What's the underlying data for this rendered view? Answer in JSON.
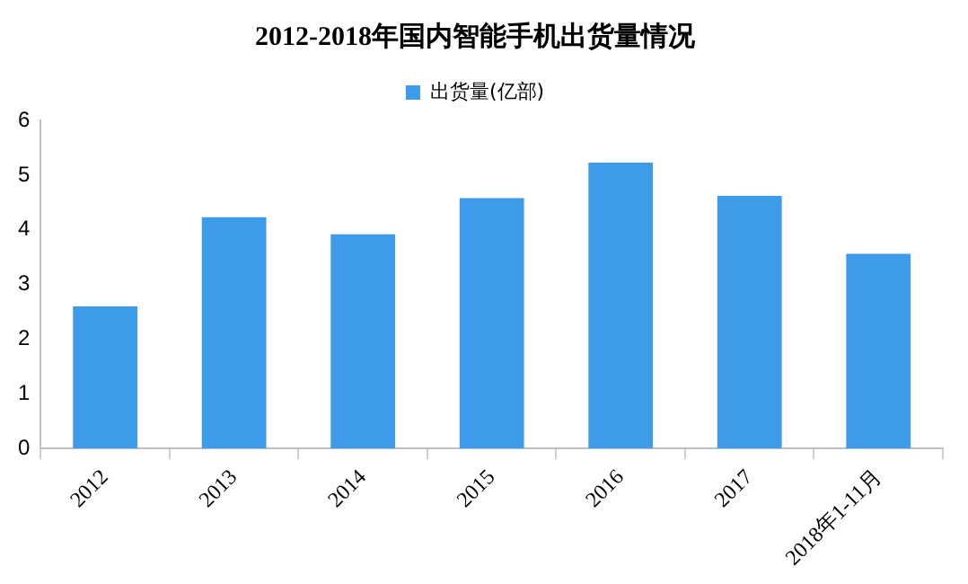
{
  "chart_data": {
    "type": "bar",
    "title": "2012-2018年国内智能手机出货量情况",
    "categories": [
      "2012",
      "2013",
      "2014",
      "2015",
      "2016",
      "2017",
      "2018年1-11月"
    ],
    "series": [
      {
        "name": "出货量(亿部)",
        "color": "#3d9be9",
        "values": [
          2.6,
          4.23,
          3.92,
          4.58,
          5.23,
          4.62,
          3.56
        ]
      }
    ],
    "ylim": [
      0,
      6
    ],
    "yticks": [
      0,
      1,
      2,
      3,
      4,
      5,
      6
    ],
    "grid": false,
    "legend": "top"
  }
}
